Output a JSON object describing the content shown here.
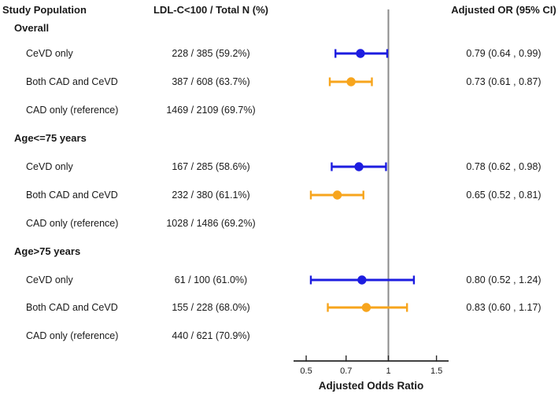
{
  "columns": {
    "population_header": "Study Population",
    "counts_header": "LDL-C<100 / Total N (%)",
    "or_header": "Adjusted OR (95% CI)"
  },
  "rows": [
    {
      "kind": "group",
      "label": "Overall"
    },
    {
      "kind": "item",
      "label": "CeVD only",
      "counts": "228 / 385 (59.2%)",
      "or_text": "0.79 (0.64 , 0.99)"
    },
    {
      "kind": "item",
      "label": "Both CAD and CeVD",
      "counts": "387 / 608 (63.7%)",
      "or_text": "0.73 (0.61 , 0.87)"
    },
    {
      "kind": "item",
      "label": "CAD only (reference)",
      "counts": "1469 / 2109 (69.7%)",
      "or_text": ""
    },
    {
      "kind": "group",
      "label": "Age<=75 years"
    },
    {
      "kind": "item",
      "label": "CeVD only",
      "counts": "167 / 285 (58.6%)",
      "or_text": "0.78 (0.62 , 0.98)"
    },
    {
      "kind": "item",
      "label": "Both CAD and CeVD",
      "counts": "232 / 380 (61.1%)",
      "or_text": "0.65 (0.52 , 0.81)"
    },
    {
      "kind": "item",
      "label": "CAD only (reference)",
      "counts": "1028 / 1486 (69.2%)",
      "or_text": ""
    },
    {
      "kind": "group",
      "label": "Age>75 years"
    },
    {
      "kind": "item",
      "label": "CeVD only",
      "counts": "61 / 100 (61.0%)",
      "or_text": "0.80 (0.52 , 1.24)"
    },
    {
      "kind": "item",
      "label": "Both CAD and CeVD",
      "counts": "155 / 228 (68.0%)",
      "or_text": "0.83 (0.60 , 1.17)"
    },
    {
      "kind": "item",
      "label": "CAD only (reference)",
      "counts": "440 / 621 (70.9%)",
      "or_text": ""
    }
  ],
  "colors": {
    "blue": "#1d1de0",
    "orange": "#f7a51d",
    "ref_line": "#8b8b8b",
    "axis": "#262626",
    "text": "#1a1a1a"
  },
  "chart_data": {
    "type": "scatter",
    "variant": "forest-plot",
    "title": "",
    "xlabel": "Adjusted Odds Ratio",
    "ylabel": "",
    "x_scale": "log",
    "x_ticks": [
      "0.5",
      "0.7",
      "1",
      "1.5"
    ],
    "xlim": [
      0.45,
      1.67
    ],
    "reference_line": 1,
    "grid": false,
    "legend": "none",
    "rows": [
      {
        "group": "Overall",
        "label": "CeVD only",
        "or": 0.79,
        "ci_low": 0.64,
        "ci_high": 0.99,
        "color": "blue"
      },
      {
        "group": "Overall",
        "label": "Both CAD and CeVD",
        "or": 0.73,
        "ci_low": 0.61,
        "ci_high": 0.87,
        "color": "orange"
      },
      {
        "group": "Age<=75 years",
        "label": "CeVD only",
        "or": 0.78,
        "ci_low": 0.62,
        "ci_high": 0.98,
        "color": "blue"
      },
      {
        "group": "Age<=75 years",
        "label": "Both CAD and CeVD",
        "or": 0.65,
        "ci_low": 0.52,
        "ci_high": 0.81,
        "color": "orange"
      },
      {
        "group": "Age>75 years",
        "label": "CeVD only",
        "or": 0.8,
        "ci_low": 0.52,
        "ci_high": 1.24,
        "color": "blue"
      },
      {
        "group": "Age>75 years",
        "label": "Both CAD and CeVD",
        "or": 0.83,
        "ci_low": 0.6,
        "ci_high": 1.17,
        "color": "orange"
      }
    ]
  }
}
